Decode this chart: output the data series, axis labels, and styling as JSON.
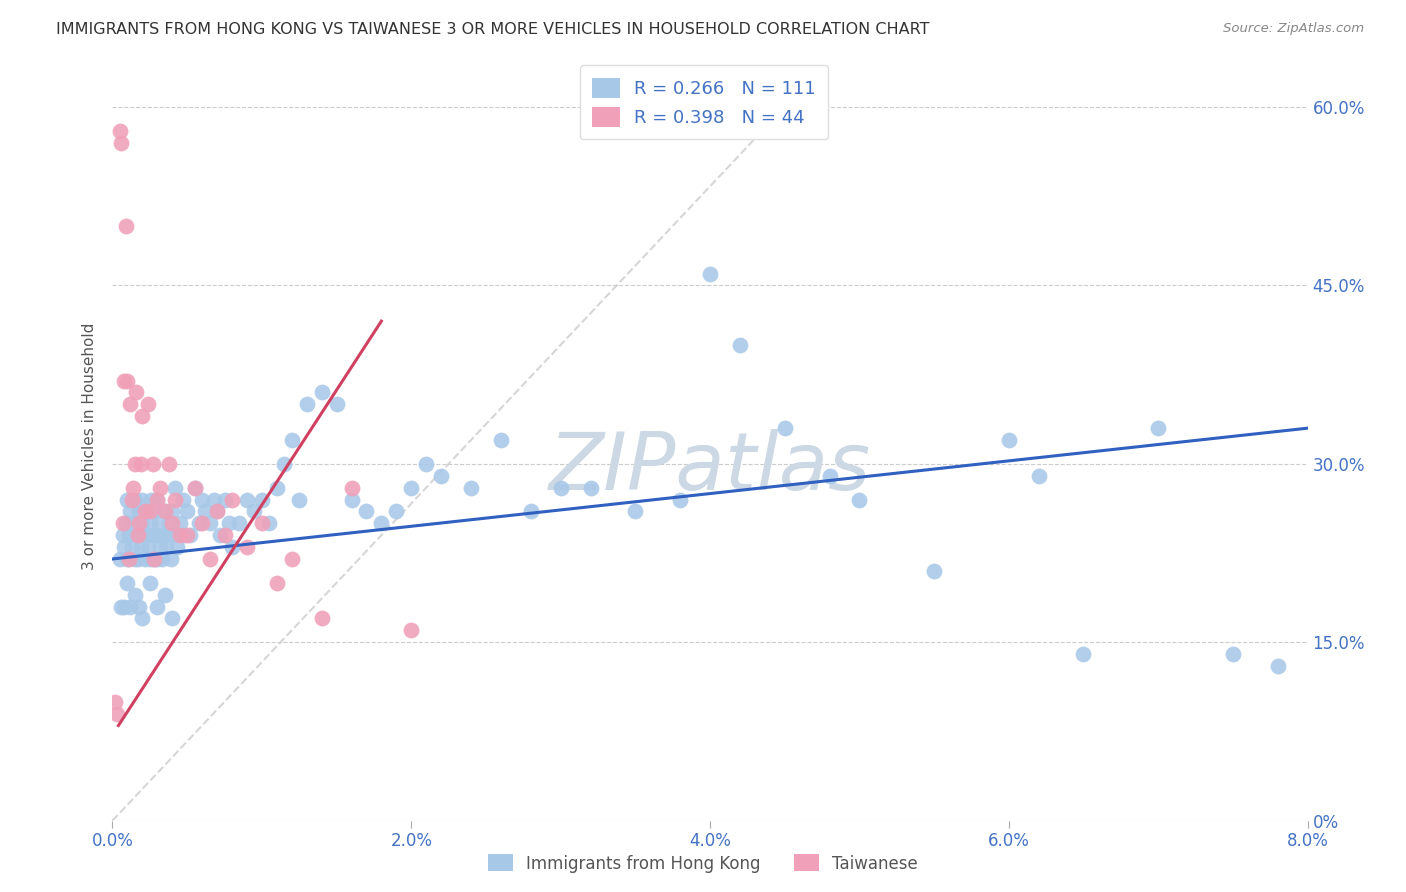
{
  "title": "IMMIGRANTS FROM HONG KONG VS TAIWANESE 3 OR MORE VEHICLES IN HOUSEHOLD CORRELATION CHART",
  "source": "Source: ZipAtlas.com",
  "ylabel_left": "3 or more Vehicles in Household",
  "x_tick_labels": [
    "0.0%",
    "2.0%",
    "4.0%",
    "6.0%",
    "8.0%"
  ],
  "x_tick_values": [
    0.0,
    2.0,
    4.0,
    6.0,
    8.0
  ],
  "y_tick_labels_right": [
    "0%",
    "15.0%",
    "30.0%",
    "45.0%",
    "60.0%"
  ],
  "y_tick_values": [
    0.0,
    15.0,
    30.0,
    45.0,
    60.0
  ],
  "xlim": [
    0.0,
    8.0
  ],
  "ylim": [
    0.0,
    63.0
  ],
  "legend_hk_label": "Immigrants from Hong Kong",
  "legend_tw_label": "Taiwanese",
  "legend_hk_R": "R = 0.266",
  "legend_hk_N": "N = 111",
  "legend_tw_R": "R = 0.398",
  "legend_tw_N": "N = 44",
  "color_hk": "#a8c8e8",
  "color_tw": "#f0a0b8",
  "color_hk_line": "#3060c0",
  "color_tw_line": "#d04060",
  "color_ref_line": "#cccccc",
  "watermark_color": "#ccd8e4",
  "background_color": "#ffffff",
  "title_fontsize": 11.5,
  "source_fontsize": 9.5,
  "hk_x": [
    0.05,
    0.07,
    0.08,
    0.09,
    0.1,
    0.1,
    0.11,
    0.12,
    0.13,
    0.14,
    0.15,
    0.15,
    0.16,
    0.17,
    0.18,
    0.18,
    0.19,
    0.2,
    0.2,
    0.21,
    0.22,
    0.22,
    0.23,
    0.24,
    0.25,
    0.25,
    0.26,
    0.27,
    0.28,
    0.28,
    0.29,
    0.3,
    0.3,
    0.31,
    0.32,
    0.33,
    0.34,
    0.35,
    0.36,
    0.37,
    0.38,
    0.39,
    0.4,
    0.41,
    0.42,
    0.43,
    0.45,
    0.47,
    0.48,
    0.5,
    0.52,
    0.55,
    0.58,
    0.6,
    0.62,
    0.65,
    0.68,
    0.7,
    0.72,
    0.75,
    0.78,
    0.8,
    0.85,
    0.9,
    0.95,
    1.0,
    1.05,
    1.1,
    1.15,
    1.2,
    1.25,
    1.3,
    1.4,
    1.5,
    1.6,
    1.7,
    1.8,
    1.9,
    2.0,
    2.1,
    2.2,
    2.4,
    2.6,
    2.8,
    3.0,
    3.2,
    3.5,
    3.8,
    4.0,
    4.2,
    4.5,
    4.8,
    5.0,
    5.5,
    6.0,
    6.2,
    6.5,
    7.0,
    7.5,
    7.8,
    0.06,
    0.08,
    0.1,
    0.12,
    0.15,
    0.18,
    0.2,
    0.25,
    0.3,
    0.35,
    0.4
  ],
  "hk_y": [
    22.0,
    24.0,
    23.0,
    25.0,
    22.0,
    27.0,
    24.0,
    26.0,
    23.0,
    25.0,
    22.0,
    27.0,
    24.0,
    22.0,
    26.0,
    24.0,
    23.0,
    25.0,
    27.0,
    24.0,
    22.0,
    26.0,
    24.0,
    23.0,
    25.0,
    22.0,
    27.0,
    24.0,
    22.0,
    26.0,
    24.0,
    22.0,
    27.0,
    25.0,
    23.0,
    22.0,
    24.0,
    26.0,
    23.0,
    24.0,
    25.0,
    22.0,
    26.0,
    24.0,
    28.0,
    23.0,
    25.0,
    27.0,
    24.0,
    26.0,
    24.0,
    28.0,
    25.0,
    27.0,
    26.0,
    25.0,
    27.0,
    26.0,
    24.0,
    27.0,
    25.0,
    23.0,
    25.0,
    27.0,
    26.0,
    27.0,
    25.0,
    28.0,
    30.0,
    32.0,
    27.0,
    35.0,
    36.0,
    35.0,
    27.0,
    26.0,
    25.0,
    26.0,
    28.0,
    30.0,
    29.0,
    28.0,
    32.0,
    26.0,
    28.0,
    28.0,
    26.0,
    27.0,
    46.0,
    40.0,
    33.0,
    29.0,
    27.0,
    21.0,
    32.0,
    29.0,
    14.0,
    33.0,
    14.0,
    13.0,
    18.0,
    18.0,
    20.0,
    18.0,
    19.0,
    18.0,
    17.0,
    20.0,
    18.0,
    19.0,
    17.0
  ],
  "tw_x": [
    0.02,
    0.03,
    0.05,
    0.06,
    0.07,
    0.08,
    0.09,
    0.1,
    0.11,
    0.12,
    0.13,
    0.14,
    0.15,
    0.16,
    0.17,
    0.18,
    0.19,
    0.2,
    0.22,
    0.24,
    0.25,
    0.27,
    0.28,
    0.3,
    0.32,
    0.35,
    0.38,
    0.4,
    0.42,
    0.45,
    0.5,
    0.55,
    0.6,
    0.65,
    0.7,
    0.75,
    0.8,
    0.9,
    1.0,
    1.1,
    1.2,
    1.4,
    1.6,
    2.0
  ],
  "tw_y": [
    10.0,
    9.0,
    58.0,
    57.0,
    25.0,
    37.0,
    50.0,
    37.0,
    22.0,
    35.0,
    27.0,
    28.0,
    30.0,
    36.0,
    24.0,
    25.0,
    30.0,
    34.0,
    26.0,
    35.0,
    26.0,
    30.0,
    22.0,
    27.0,
    28.0,
    26.0,
    30.0,
    25.0,
    27.0,
    24.0,
    24.0,
    28.0,
    25.0,
    22.0,
    26.0,
    24.0,
    27.0,
    23.0,
    25.0,
    20.0,
    22.0,
    17.0,
    28.0,
    16.0
  ],
  "hk_line_x": [
    0.0,
    8.0
  ],
  "hk_line_y": [
    22.0,
    33.0
  ],
  "tw_line_x": [
    0.04,
    1.8
  ],
  "tw_line_y": [
    8.0,
    42.0
  ],
  "ref_line_x": [
    0.0,
    4.5
  ],
  "ref_line_y": [
    0.0,
    60.0
  ]
}
